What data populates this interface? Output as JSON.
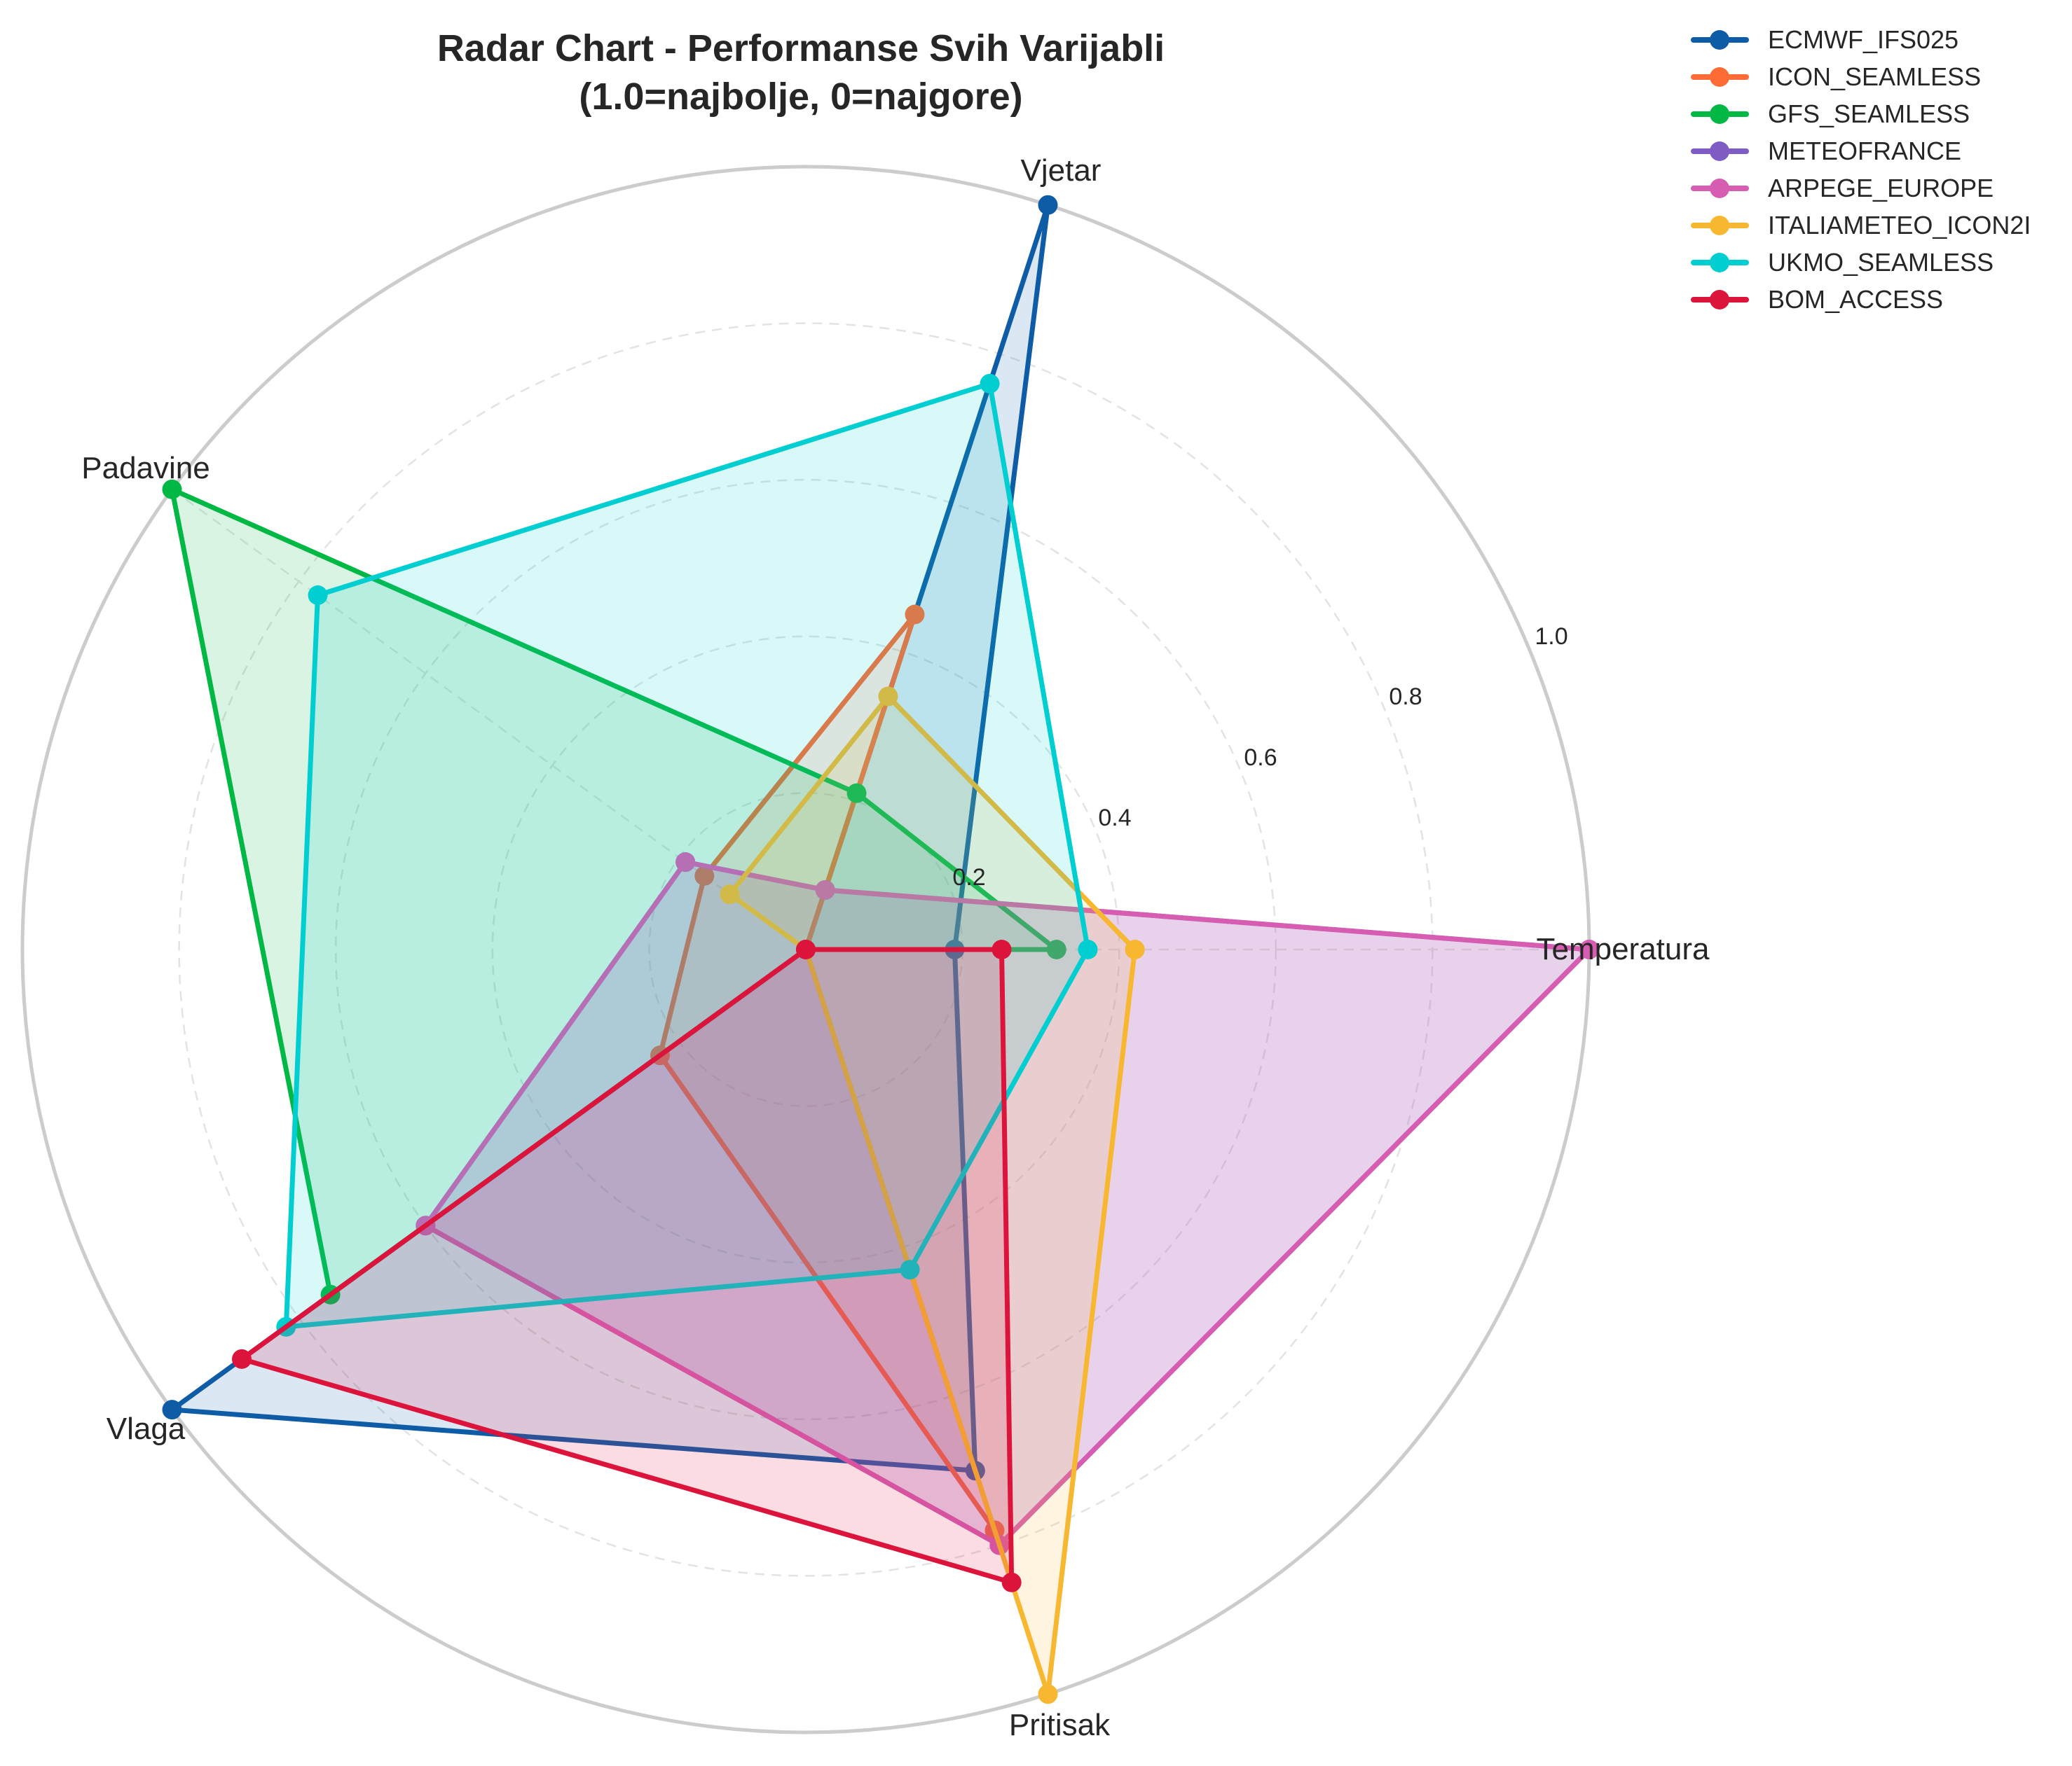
{
  "title": {
    "line1": "Radar Chart - Performanse Svih Varijabli",
    "line2": "(1.0=najbolje, 0=najgore)"
  },
  "legend": {
    "items": [
      {
        "label": "ECMWF_IFS025",
        "color": "#0f5ca6"
      },
      {
        "label": "ICON_SEAMLESS",
        "color": "#ff6b35"
      },
      {
        "label": "GFS_SEAMLESS",
        "color": "#00b843"
      },
      {
        "label": "METEOFRANCE",
        "color": "#7e5cc4"
      },
      {
        "label": "ARPEGE_EUROPE",
        "color": "#d65db1"
      },
      {
        "label": "ITALIAMETEO_ICON2I",
        "color": "#f7b731"
      },
      {
        "label": "UKMO_SEAMLESS",
        "color": "#00ced1"
      },
      {
        "label": "BOM_ACCESS",
        "color": "#dc143c"
      }
    ]
  },
  "chart_data": {
    "type": "radar",
    "title": "Radar Chart - Performanse Svih Varijabli (1.0=najbolje, 0=najgore)",
    "axes": [
      "Temperatura",
      "Vjetar",
      "Padavine",
      "Vlaga",
      "Pritisak"
    ],
    "axis_angles_deg": [
      0,
      72,
      144,
      216,
      288
    ],
    "radial_ticks": [
      "0.2",
      "0.4",
      "0.6",
      "0.8",
      "1.0"
    ],
    "radial_tick_values": [
      0.2,
      0.4,
      0.6,
      0.8,
      1.0
    ],
    "rlim": [
      0,
      1.0
    ],
    "grid": true,
    "legend_position": "upper right, outside plot",
    "series": [
      {
        "name": "ECMWF_IFS025",
        "color": "#0f5ca6",
        "values": [
          0.19,
          1.0,
          0.0,
          1.0,
          0.7
        ]
      },
      {
        "name": "ICON_SEAMLESS",
        "color": "#ff6b35",
        "values": [
          0.0,
          0.45,
          0.16,
          0.23,
          0.78
        ]
      },
      {
        "name": "GFS_SEAMLESS",
        "color": "#00b843",
        "values": [
          0.32,
          0.21,
          1.0,
          0.75,
          0.0
        ]
      },
      {
        "name": "METEOFRANCE",
        "color": "#7e5cc4",
        "values": [
          1.0,
          0.08,
          0.19,
          0.6,
          0.8
        ]
      },
      {
        "name": "ARPEGE_EUROPE",
        "color": "#d65db1",
        "values": [
          1.0,
          0.08,
          0.19,
          0.6,
          0.8
        ]
      },
      {
        "name": "ITALIAMETEO_ICON2I",
        "color": "#f7b731",
        "values": [
          0.42,
          0.34,
          0.12,
          0.0,
          1.0
        ]
      },
      {
        "name": "UKMO_SEAMLESS",
        "color": "#00ced1",
        "values": [
          0.36,
          0.76,
          0.77,
          0.82,
          0.43
        ]
      },
      {
        "name": "BOM_ACCESS",
        "color": "#dc143c",
        "values": [
          0.25,
          0.0,
          0.0,
          0.89,
          0.85
        ]
      }
    ]
  }
}
